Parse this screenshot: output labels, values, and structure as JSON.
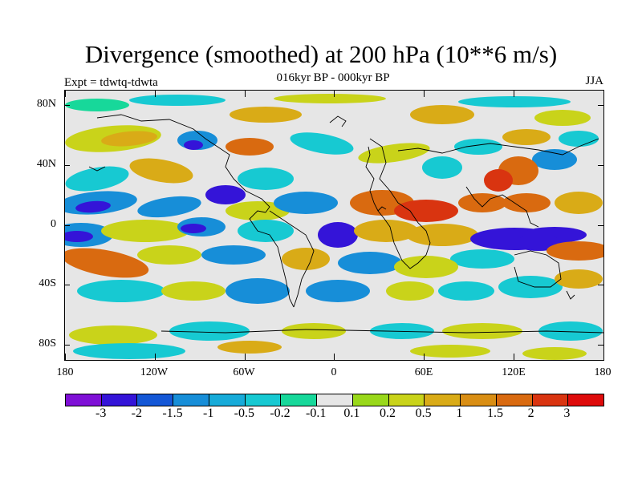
{
  "title": "Divergence (smoothed) at 200 hPa (10**6 m/s)",
  "subtitle": "016kyr BP - 000kyr BP",
  "experiment": "Expt = tdwtq-tdwta",
  "season": "JJA",
  "lat_labels": [
    "80N",
    "40N",
    "0",
    "40S",
    "80S"
  ],
  "lon_labels": [
    "180",
    "120W",
    "60W",
    "0",
    "60E",
    "120E",
    "180"
  ],
  "colorbar": {
    "colors": [
      "#7f10d6",
      "#3414d8",
      "#1457d6",
      "#178ed8",
      "#17abd9",
      "#17c9d2",
      "#17d89a",
      "#e6e6e6",
      "#99d81a",
      "#c9d31a",
      "#d9ab17",
      "#d98e14",
      "#d96a10",
      "#d93410",
      "#de0b0b"
    ],
    "labels": [
      "-3",
      "-2",
      "-1.5",
      "-1",
      "-0.5",
      "-0.2",
      "-0.1",
      "0.1",
      "0.2",
      "0.5",
      "1",
      "1.5",
      "2",
      "3"
    ]
  },
  "colors": {
    "neutral": "#e6e6e6",
    "strong_neg": "#3414d8",
    "neg": "#178ed8",
    "weak_neg": "#17c9d2",
    "weakest_neg": "#17d89a",
    "weak_pos": "#c9d31a",
    "pos": "#d9ab17",
    "strong_pos": "#d96a10",
    "max_pos": "#d93410"
  }
}
